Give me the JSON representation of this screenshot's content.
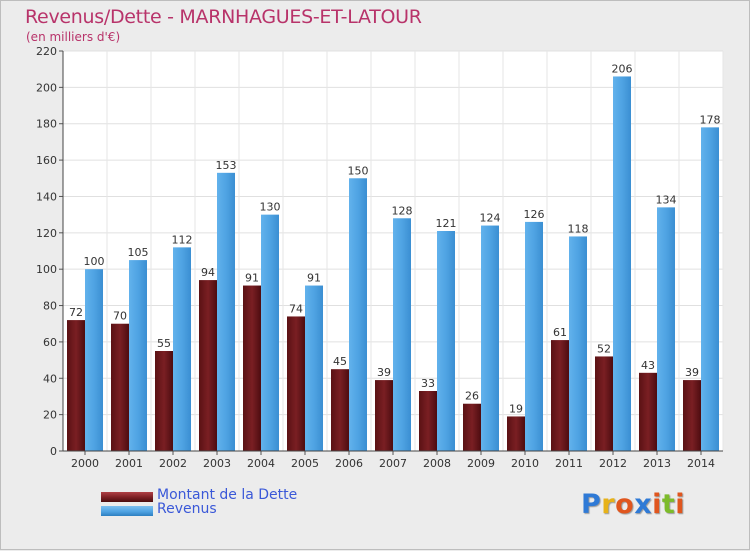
{
  "title": "Revenus/Dette - MARNHAGUES-ET-LATOUR",
  "subtitle": "(en milliers d'€)",
  "legend": {
    "debt_label": "Montant de la Dette",
    "revenue_label": "Revenus"
  },
  "logo": {
    "text": "Proxiti",
    "letter_colors": [
      "#2f7ad6",
      "#e7b219",
      "#e0561e",
      "#2f7ad6",
      "#e0561e",
      "#7dbb2b",
      "#e0561e"
    ]
  },
  "colors": {
    "debt": "#7a1f23",
    "revenue": "#4fa3e3",
    "title": "#b8336a",
    "legend_text": "#3a58d8"
  },
  "chart_data": {
    "type": "bar",
    "title": "Revenus/Dette - MARNHAGUES-ET-LATOUR",
    "subtitle": "(en milliers d'€)",
    "categories": [
      "2000",
      "2001",
      "2002",
      "2003",
      "2004",
      "2005",
      "2006",
      "2007",
      "2008",
      "2009",
      "2010",
      "2011",
      "2012",
      "2013",
      "2014"
    ],
    "series": [
      {
        "name": "Montant de la Dette",
        "values": [
          72,
          70,
          55,
          94,
          91,
          74,
          45,
          39,
          33,
          26,
          19,
          61,
          52,
          43,
          39
        ]
      },
      {
        "name": "Revenus",
        "values": [
          100,
          105,
          112,
          153,
          130,
          91,
          150,
          128,
          121,
          124,
          126,
          118,
          206,
          134,
          178
        ]
      }
    ],
    "ylim": [
      0,
      220
    ],
    "yticks": [
      0,
      20,
      40,
      60,
      80,
      100,
      120,
      140,
      160,
      180,
      200,
      220
    ],
    "grid": true,
    "legend_position": "bottom-left"
  }
}
